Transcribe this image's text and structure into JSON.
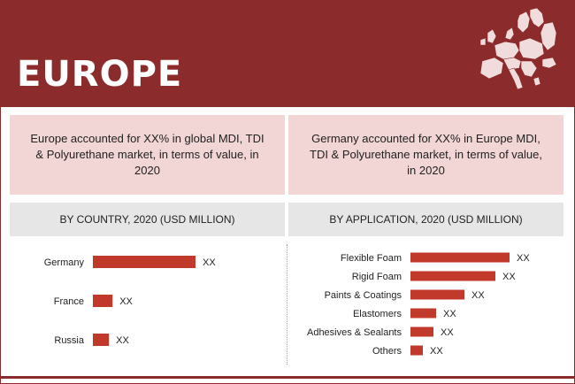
{
  "header": {
    "title": "EUROPE"
  },
  "info": {
    "left": "Europe accounted for XX% in global MDI, TDI & Polyurethane market, in terms of value, in 2020",
    "right": "Germany accounted for XX% in Europe MDI, TDI & Polyurethane market, in terms of value, in 2020"
  },
  "colors": {
    "banner": "#8b2b2b",
    "bar": "#c0392b",
    "info_box": "#f2d5d5",
    "header_bar": "#e6e6e6"
  },
  "chart_data": [
    {
      "type": "bar",
      "orientation": "horizontal",
      "title": "BY COUNTRY, 2020 (USD MILLION)",
      "categories": [
        "Germany",
        "France",
        "Russia"
      ],
      "values": [
        115,
        22,
        18
      ],
      "labels": [
        "XX",
        "XX",
        "XX"
      ]
    },
    {
      "type": "bar",
      "orientation": "horizontal",
      "title": "BY APPLICATION, 2020 (USD MILLION)",
      "categories": [
        "Flexible Foam",
        "Rigid Foam",
        "Paints & Coatings",
        "Elastomers",
        "Adhesives & Sealants",
        "Others"
      ],
      "values": [
        112,
        96,
        61,
        29,
        26,
        14
      ],
      "labels": [
        "XX",
        "XX",
        "XX",
        "XX",
        "XX",
        "XX"
      ]
    }
  ]
}
